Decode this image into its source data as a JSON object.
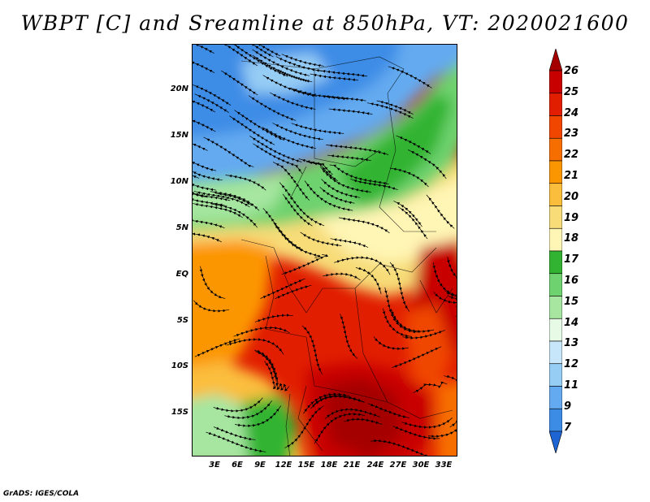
{
  "title": "WBPT [C] and Sreamline at 850hPa, VT: 2020021600",
  "y_axis_labels": [
    "20N",
    "15N",
    "10N",
    "5N",
    "EQ",
    "5S",
    "10S",
    "15S"
  ],
  "x_axis_labels": [
    "3E",
    "6E",
    "9E",
    "12E",
    "15E",
    "18E",
    "21E",
    "24E",
    "27E",
    "30E",
    "33E"
  ],
  "colorbar": {
    "levels": [
      "26",
      "25",
      "24",
      "23",
      "22",
      "21",
      "20",
      "19",
      "18",
      "17",
      "16",
      "15",
      "14",
      "13",
      "12",
      "11",
      "9",
      "7"
    ],
    "colors": [
      "#a50000",
      "#c80000",
      "#e11e00",
      "#f04600",
      "#f76e00",
      "#fc9600",
      "#fbbe3c",
      "#f7dc78",
      "#fff5b4",
      "#32b432",
      "#6ed26e",
      "#a6e6a0",
      "#e6fae6",
      "#c8e6fa",
      "#96cdf5",
      "#64aaf0",
      "#3c8ce6",
      "#1e64d2"
    ]
  },
  "credit": "GrADS: IGES/COLA"
}
